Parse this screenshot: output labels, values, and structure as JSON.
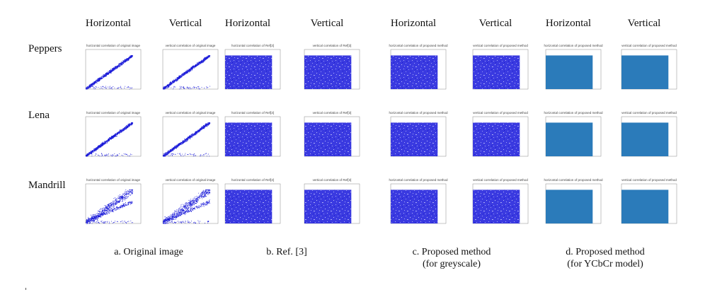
{
  "column_headers": [
    "Horizontal",
    "Vertical",
    "Horizontal",
    "Vertical",
    "Horizontal",
    "Vertical",
    "Horizontal",
    "Vertical"
  ],
  "row_labels": [
    "Peppers",
    "Lena",
    "Mandrill"
  ],
  "groups": [
    {
      "caption": [
        "a. Original image"
      ],
      "panel_titles": [
        "horizontal correlation of original image",
        "vertical correlation of original image"
      ]
    },
    {
      "caption": [
        "b. Ref. [3]"
      ],
      "panel_titles": [
        "horizontal correlation of Ref[3]",
        "vertical correlation of Ref[3]"
      ]
    },
    {
      "caption": [
        "c. Proposed method",
        "(for greyscale)"
      ],
      "panel_titles": [
        "horizontal correlation of proposed method",
        "vertical correlation of proposed method"
      ]
    },
    {
      "caption": [
        "d. Proposed method",
        "(for YCbCr model)"
      ],
      "panel_titles": [
        "horizontal correlation of proposed method",
        "vertical correlation of proposed method"
      ]
    }
  ]
}
